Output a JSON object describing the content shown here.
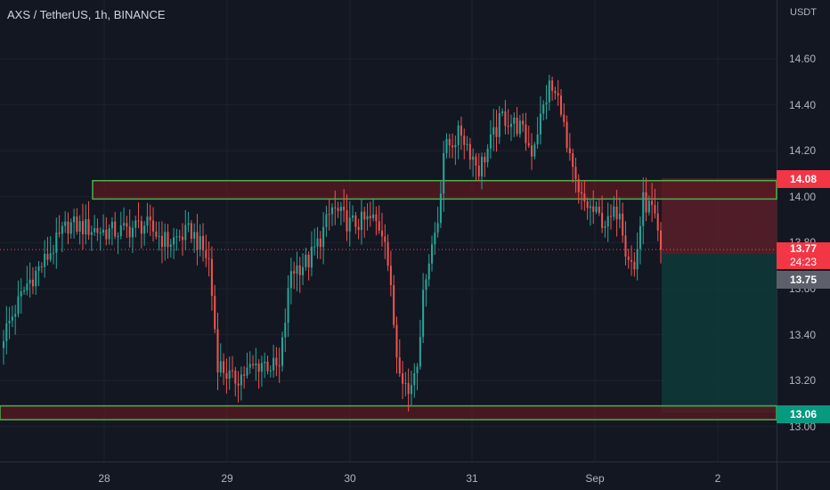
{
  "header": {
    "title": "AXS / TetherUS, 1h, BINANCE",
    "currency": "USDT"
  },
  "badges": {
    "resistance": "14.08",
    "current_price": "13.77",
    "countdown": "24:23",
    "hover_price": "13.75",
    "target": "13.06"
  },
  "colors": {
    "background": "#131722",
    "up": "#26a69a",
    "down": "#ef5350",
    "zone_border": "#4caf50",
    "zone_fill": "#5b1a22",
    "stop_fill": "#5b1e28",
    "target_fill": "#0f3a3a"
  },
  "chart_data": {
    "type": "candlestick",
    "title": "AXS / TetherUS, 1h, BINANCE",
    "ylabel": "USDT",
    "ylim": [
      12.95,
      14.73
    ],
    "y_ticks": [
      "14.60",
      "14.40",
      "14.20",
      "14.00",
      "13.80",
      "13.60",
      "13.40",
      "13.20",
      "13.00"
    ],
    "x_ticks": [
      "28",
      "29",
      "30",
      "31",
      "Sep",
      "2"
    ],
    "zones": [
      {
        "label": "resistance",
        "from": 13.99,
        "to": 14.07
      },
      {
        "label": "support",
        "from": 13.03,
        "to": 13.09
      }
    ],
    "position": {
      "entry": 13.75,
      "stop": 14.08,
      "target": 13.06
    },
    "anchors": [
      [
        0,
        13.4
      ],
      [
        8,
        13.62
      ],
      [
        14,
        13.72
      ],
      [
        22,
        13.88
      ],
      [
        34,
        13.85
      ],
      [
        40,
        13.85
      ],
      [
        48,
        13.88
      ],
      [
        56,
        13.8
      ],
      [
        64,
        13.85
      ],
      [
        70,
        13.72
      ],
      [
        73,
        13.28
      ],
      [
        78,
        13.2
      ],
      [
        88,
        13.28
      ],
      [
        94,
        13.25
      ],
      [
        98,
        13.68
      ],
      [
        104,
        13.72
      ],
      [
        108,
        13.82
      ],
      [
        112,
        13.95
      ],
      [
        118,
        13.88
      ],
      [
        126,
        13.9
      ],
      [
        130,
        13.84
      ],
      [
        134,
        13.32
      ],
      [
        138,
        13.14
      ],
      [
        141,
        13.3
      ],
      [
        144,
        13.68
      ],
      [
        148,
        13.9
      ],
      [
        150,
        14.2
      ],
      [
        156,
        14.28
      ],
      [
        162,
        14.12
      ],
      [
        170,
        14.35
      ],
      [
        176,
        14.3
      ],
      [
        180,
        14.2
      ],
      [
        186,
        14.48
      ],
      [
        190,
        14.4
      ],
      [
        192,
        14.2
      ],
      [
        196,
        14.0
      ],
      [
        202,
        13.92
      ],
      [
        206,
        13.88
      ],
      [
        210,
        13.96
      ],
      [
        212,
        13.78
      ],
      [
        215,
        13.68
      ],
      [
        218,
        13.98
      ],
      [
        221,
        13.94
      ],
      [
        224,
        13.77
      ]
    ]
  }
}
